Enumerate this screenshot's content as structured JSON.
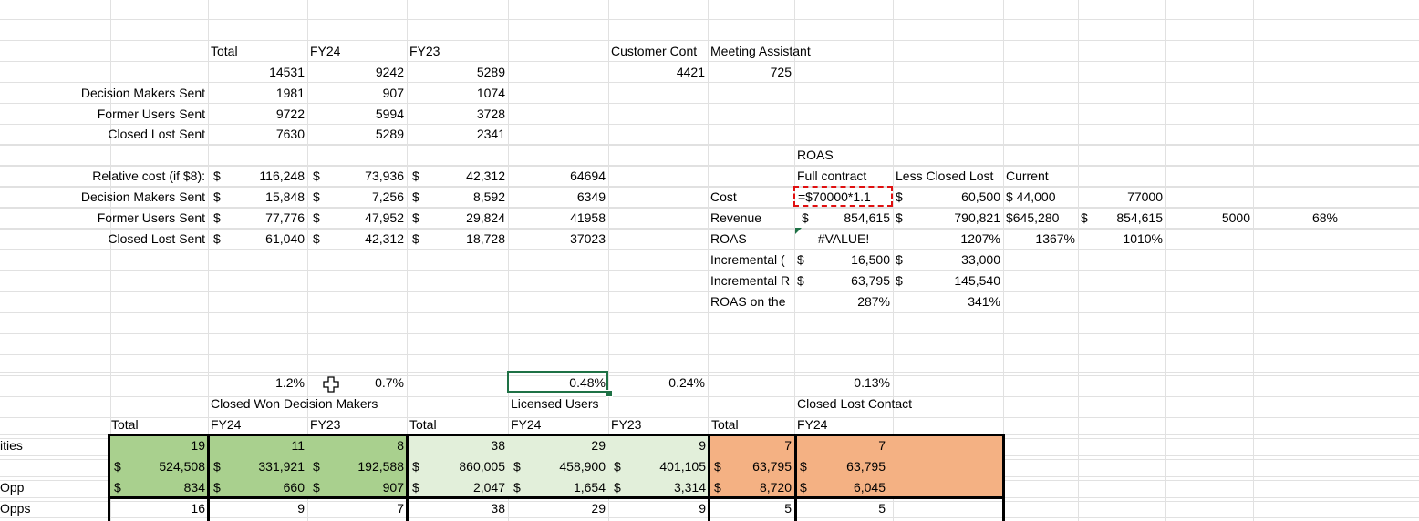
{
  "colors": {
    "green_dark": "#a9d08e",
    "green_light": "#e2efda",
    "orange": "#f4b183",
    "selection_green": "#1e7145",
    "formula_marquee": "#e01010"
  },
  "headers": {
    "total": "Total",
    "fy24": "FY24",
    "fy23": "FY23",
    "customer_cont": "Customer Cont",
    "meeting_assistant": "Meeting Assistant"
  },
  "counts": {
    "row0": {
      "total": "14531",
      "fy24": "9242",
      "fy23": "5289",
      "customer_cont": "4421",
      "meeting_assistant": "725"
    },
    "rows": [
      {
        "label": "Decision Makers Sent",
        "total": "1981",
        "fy24": "907",
        "fy23": "1074"
      },
      {
        "label": "Former Users Sent",
        "total": "9722",
        "fy24": "5994",
        "fy23": "3728"
      },
      {
        "label": "Closed Lost Sent",
        "total": "7630",
        "fy24": "5289",
        "fy23": "2341"
      }
    ]
  },
  "costs": {
    "currency": "$",
    "rows": [
      {
        "label": "Relative cost (if $8):",
        "total": "116,248",
        "fy24": "73,936",
        "fy23": "42,312",
        "extra": "64694"
      },
      {
        "label": "Decision Makers Sent",
        "total": "15,848",
        "fy24": "7,256",
        "fy23": "8,592",
        "extra": "6349"
      },
      {
        "label": "Former Users Sent",
        "total": "77,776",
        "fy24": "47,952",
        "fy23": "29,824",
        "extra": "41958"
      },
      {
        "label": "Closed Lost Sent",
        "total": "61,040",
        "fy24": "42,312",
        "fy23": "18,728",
        "extra": "37023"
      }
    ]
  },
  "roas": {
    "title": "ROAS",
    "col_full_contract": "Full contract",
    "col_less_closed_lost": "Less Closed Lost",
    "col_current": "Current",
    "cost_label": "Cost",
    "cost_formula": "=$70000*1.1",
    "cost_less": "60,500",
    "cost_current": "$ 44,000",
    "cost_extra": "77000",
    "revenue_label": "Revenue",
    "revenue_full": "854,615",
    "revenue_less": "790,821",
    "revenue_current": "$645,280",
    "revenue_extra": "854,615",
    "revenue_extra2": "5000",
    "revenue_extra3": "68%",
    "roas_label": "ROAS",
    "roas_full": "#VALUE!",
    "roas_less": "1207%",
    "roas_current": "1367%",
    "roas_extra": "1010%",
    "inc_cost_label": "Incremental (",
    "inc_cost_full": "16,500",
    "inc_cost_less": "33,000",
    "inc_rev_label": "Incremental R",
    "inc_rev_full": "63,795",
    "inc_rev_less": "145,540",
    "roas_on_label": "ROAS on the",
    "roas_on_full": "287%",
    "roas_on_less": "341%"
  },
  "pct_row": {
    "a": "1.2%",
    "b": "0.7%",
    "c": "0.48%",
    "d": "0.24%",
    "e": "0.13%"
  },
  "groups": {
    "cwdm": "Closed Won Decision Makers",
    "licensed": "Licensed Users",
    "cll": "Closed Lost Contact"
  },
  "table": {
    "headers": [
      "Total",
      "FY24",
      "FY23",
      "Total",
      "FY24",
      "FY23",
      "Total",
      "FY24"
    ],
    "row_labels": [
      "ities",
      "",
      "Opp",
      "Opps"
    ],
    "rows": [
      [
        "19",
        "11",
        "8",
        "38",
        "29",
        "9",
        "7",
        "7"
      ],
      [
        "524,508",
        "331,921",
        "192,588",
        "860,005",
        "458,900",
        "401,105",
        "63,795",
        "63,795"
      ],
      [
        "834",
        "660",
        "907",
        "2,047",
        "1,654",
        "3,314",
        "8,720",
        "6,045"
      ],
      [
        "16",
        "9",
        "7",
        "38",
        "29",
        "9",
        "5",
        "5"
      ]
    ]
  }
}
